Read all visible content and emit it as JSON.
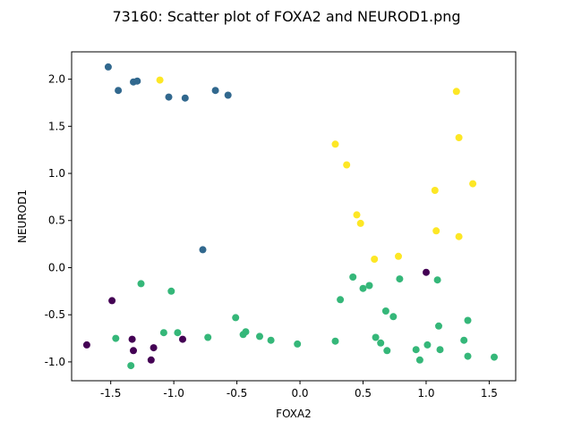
{
  "chart_data": {
    "type": "scatter",
    "title": "73160: Scatter plot of FOXA2 and NEUROD1.png",
    "xlabel": "FOXA2",
    "ylabel": "NEUROD1",
    "xlim": [
      -1.81,
      1.71
    ],
    "ylim": [
      -1.2,
      2.29
    ],
    "xticks": [
      "-1.5",
      "-1.0",
      "-0.5",
      "0.0",
      "0.5",
      "1.0",
      "1.5"
    ],
    "xtick_values": [
      -1.5,
      -1.0,
      -0.5,
      0.0,
      0.5,
      1.0,
      1.5
    ],
    "yticks": [
      "-1.0",
      "-0.5",
      "0.0",
      "0.5",
      "1.0",
      "1.5",
      "2.0"
    ],
    "ytick_values": [
      -1.0,
      -0.5,
      0.0,
      0.5,
      1.0,
      1.5,
      2.0
    ],
    "grid": false,
    "series": [
      {
        "color": "#440154",
        "points": [
          [
            -1.69,
            -0.82
          ],
          [
            -1.49,
            -0.35
          ],
          [
            -1.33,
            -0.76
          ],
          [
            -1.32,
            -0.88
          ],
          [
            -1.18,
            -0.98
          ],
          [
            -1.16,
            -0.85
          ],
          [
            -0.93,
            -0.76
          ],
          [
            1.0,
            -0.05
          ]
        ]
      },
      {
        "color": "#31688e",
        "points": [
          [
            -1.52,
            2.13
          ],
          [
            -1.44,
            1.88
          ],
          [
            -1.32,
            1.97
          ],
          [
            -1.29,
            1.98
          ],
          [
            -1.04,
            1.81
          ],
          [
            -0.91,
            1.8
          ],
          [
            -0.67,
            1.88
          ],
          [
            -0.57,
            1.83
          ],
          [
            -0.77,
            0.19
          ]
        ]
      },
      {
        "color": "#35b779",
        "points": [
          [
            -1.46,
            -0.75
          ],
          [
            -1.34,
            -1.04
          ],
          [
            -1.26,
            -0.17
          ],
          [
            -1.08,
            -0.69
          ],
          [
            -1.02,
            -0.25
          ],
          [
            -0.97,
            -0.69
          ],
          [
            -0.73,
            -0.74
          ],
          [
            -0.51,
            -0.53
          ],
          [
            -0.45,
            -0.71
          ],
          [
            -0.43,
            -0.68
          ],
          [
            -0.32,
            -0.73
          ],
          [
            -0.23,
            -0.77
          ],
          [
            -0.02,
            -0.81
          ],
          [
            0.28,
            -0.78
          ],
          [
            0.32,
            -0.34
          ],
          [
            0.42,
            -0.1
          ],
          [
            0.5,
            -0.22
          ],
          [
            0.55,
            -0.19
          ],
          [
            0.6,
            -0.74
          ],
          [
            0.64,
            -0.8
          ],
          [
            0.68,
            -0.46
          ],
          [
            0.69,
            -0.88
          ],
          [
            0.74,
            -0.52
          ],
          [
            0.79,
            -0.12
          ],
          [
            0.92,
            -0.87
          ],
          [
            0.95,
            -0.98
          ],
          [
            1.01,
            -0.82
          ],
          [
            1.09,
            -0.13
          ],
          [
            1.1,
            -0.62
          ],
          [
            1.11,
            -0.87
          ],
          [
            1.3,
            -0.77
          ],
          [
            1.33,
            -0.94
          ],
          [
            1.33,
            -0.56
          ],
          [
            1.54,
            -0.95
          ]
        ]
      },
      {
        "color": "#fde725",
        "points": [
          [
            -1.11,
            1.99
          ],
          [
            0.28,
            1.31
          ],
          [
            0.37,
            1.09
          ],
          [
            0.45,
            0.56
          ],
          [
            0.48,
            0.47
          ],
          [
            0.59,
            0.09
          ],
          [
            0.78,
            0.12
          ],
          [
            1.07,
            0.82
          ],
          [
            1.08,
            0.39
          ],
          [
            1.24,
            1.87
          ],
          [
            1.26,
            1.38
          ],
          [
            1.26,
            0.33
          ],
          [
            1.37,
            0.89
          ]
        ]
      }
    ]
  }
}
